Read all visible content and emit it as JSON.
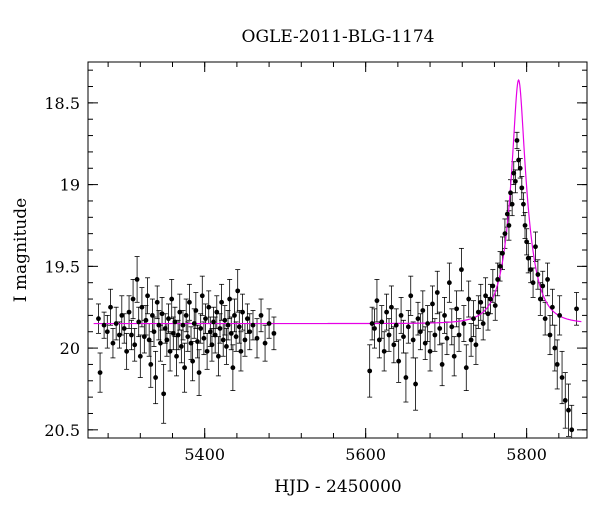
{
  "chart_data": {
    "type": "scatter",
    "title": "OGLE-2011-BLG-1174",
    "xlabel": "HJD - 2450000",
    "ylabel": "I magnitude",
    "xlim": [
      5255,
      5875
    ],
    "ylim": [
      20.55,
      18.25
    ],
    "y_inverted": true,
    "xticks": [
      5400,
      5600,
      5800
    ],
    "yticks": [
      18.5,
      19,
      19.5,
      20,
      20.5
    ],
    "grid": false,
    "colors": {
      "points": "#000000",
      "model": "#e600e6"
    },
    "series": [
      {
        "kind": "points_with_errorbars",
        "points": [
          [
            5268,
            19.82,
            0.09
          ],
          [
            5270,
            20.15,
            0.12
          ],
          [
            5275,
            19.86,
            0.08
          ],
          [
            5279,
            19.9,
            0.1
          ],
          [
            5283,
            19.75,
            0.11
          ],
          [
            5286,
            19.97,
            0.09
          ],
          [
            5290,
            19.85,
            0.1
          ],
          [
            5294,
            19.92,
            0.08
          ],
          [
            5297,
            19.8,
            0.12
          ],
          [
            5300,
            19.88,
            0.09
          ],
          [
            5303,
            20.02,
            0.11
          ],
          [
            5306,
            19.78,
            0.1
          ],
          [
            5309,
            19.92,
            0.09
          ],
          [
            5311,
            19.7,
            0.12
          ],
          [
            5313,
            19.98,
            0.1
          ],
          [
            5316,
            19.58,
            0.14
          ],
          [
            5318,
            19.84,
            0.09
          ],
          [
            5320,
            20.05,
            0.13
          ],
          [
            5322,
            19.75,
            0.12
          ],
          [
            5325,
            19.93,
            0.1
          ],
          [
            5327,
            19.83,
            0.09
          ],
          [
            5329,
            19.68,
            0.11
          ],
          [
            5331,
            19.95,
            0.1
          ],
          [
            5333,
            20.1,
            0.14
          ],
          [
            5335,
            19.8,
            0.1
          ],
          [
            5337,
            19.9,
            0.09
          ],
          [
            5339,
            20.18,
            0.16
          ],
          [
            5341,
            19.72,
            0.1
          ],
          [
            5343,
            19.86,
            0.09
          ],
          [
            5345,
            19.97,
            0.11
          ],
          [
            5347,
            19.79,
            0.1
          ],
          [
            5349,
            20.28,
            0.18
          ],
          [
            5351,
            19.88,
            0.09
          ],
          [
            5353,
            19.95,
            0.1
          ],
          [
            5355,
            19.82,
            0.09
          ],
          [
            5357,
            20.02,
            0.12
          ],
          [
            5359,
            19.7,
            0.12
          ],
          [
            5361,
            19.91,
            0.1
          ],
          [
            5363,
            19.84,
            0.09
          ],
          [
            5365,
            20.05,
            0.12
          ],
          [
            5367,
            19.92,
            0.09
          ],
          [
            5369,
            19.78,
            0.11
          ],
          [
            5371,
            19.99,
            0.1
          ],
          [
            5373,
            19.86,
            0.09
          ],
          [
            5375,
            20.12,
            0.15
          ],
          [
            5377,
            19.8,
            0.1
          ],
          [
            5379,
            19.93,
            0.09
          ],
          [
            5381,
            19.72,
            0.11
          ],
          [
            5383,
            19.97,
            0.1
          ],
          [
            5385,
            20.08,
            0.12
          ],
          [
            5387,
            19.85,
            0.09
          ],
          [
            5389,
            19.77,
            0.11
          ],
          [
            5391,
            19.96,
            0.1
          ],
          [
            5393,
            20.15,
            0.14
          ],
          [
            5395,
            19.88,
            0.09
          ],
          [
            5397,
            19.68,
            0.12
          ],
          [
            5399,
            19.94,
            0.1
          ],
          [
            5401,
            19.82,
            0.09
          ],
          [
            5403,
            20.02,
            0.11
          ],
          [
            5405,
            19.75,
            0.1
          ],
          [
            5407,
            19.9,
            0.09
          ],
          [
            5409,
            19.98,
            0.1
          ],
          [
            5411,
            19.84,
            0.09
          ],
          [
            5413,
            19.92,
            0.11
          ],
          [
            5415,
            19.78,
            0.1
          ],
          [
            5417,
            20.05,
            0.12
          ],
          [
            5419,
            19.88,
            0.09
          ],
          [
            5421,
            19.72,
            0.11
          ],
          [
            5423,
            19.95,
            0.1
          ],
          [
            5425,
            19.83,
            0.09
          ],
          [
            5427,
            19.99,
            0.11
          ],
          [
            5429,
            19.86,
            0.09
          ],
          [
            5431,
            19.7,
            0.12
          ],
          [
            5433,
            19.91,
            0.1
          ],
          [
            5435,
            20.12,
            0.14
          ],
          [
            5437,
            19.8,
            0.1
          ],
          [
            5439,
            19.93,
            0.09
          ],
          [
            5441,
            19.65,
            0.13
          ],
          [
            5443,
            19.87,
            0.1
          ],
          [
            5445,
            20.02,
            0.12
          ],
          [
            5447,
            19.78,
            0.11
          ],
          [
            5450,
            19.95,
            0.1
          ],
          [
            5453,
            19.82,
            0.09
          ],
          [
            5456,
            19.9,
            0.11
          ],
          [
            5460,
            19.86,
            0.09
          ],
          [
            5465,
            19.94,
            0.12
          ],
          [
            5470,
            19.8,
            0.1
          ],
          [
            5475,
            19.97,
            0.11
          ],
          [
            5480,
            19.85,
            0.09
          ],
          [
            5486,
            19.91,
            0.1
          ],
          [
            5605,
            20.14,
            0.16
          ],
          [
            5608,
            19.85,
            0.1
          ],
          [
            5611,
            19.88,
            0.12
          ],
          [
            5614,
            19.71,
            0.13
          ],
          [
            5617,
            19.95,
            0.11
          ],
          [
            5620,
            19.84,
            0.1
          ],
          [
            5623,
            20.02,
            0.12
          ],
          [
            5626,
            19.78,
            0.11
          ],
          [
            5629,
            19.92,
            0.1
          ],
          [
            5632,
            19.75,
            0.13
          ],
          [
            5635,
            19.98,
            0.11
          ],
          [
            5638,
            19.86,
            0.1
          ],
          [
            5641,
            20.08,
            0.13
          ],
          [
            5644,
            19.8,
            0.11
          ],
          [
            5647,
            19.93,
            0.1
          ],
          [
            5650,
            20.18,
            0.15
          ],
          [
            5653,
            19.87,
            0.1
          ],
          [
            5656,
            19.68,
            0.12
          ],
          [
            5659,
            19.95,
            0.11
          ],
          [
            5662,
            20.22,
            0.16
          ],
          [
            5665,
            19.82,
            0.1
          ],
          [
            5668,
            19.9,
            0.11
          ],
          [
            5671,
            19.77,
            0.12
          ],
          [
            5674,
            19.97,
            0.1
          ],
          [
            5677,
            19.85,
            0.11
          ],
          [
            5680,
            20.02,
            0.12
          ],
          [
            5683,
            19.73,
            0.11
          ],
          [
            5686,
            19.92,
            0.1
          ],
          [
            5689,
            19.66,
            0.13
          ],
          [
            5692,
            19.88,
            0.1
          ],
          [
            5695,
            20.1,
            0.13
          ],
          [
            5698,
            19.8,
            0.11
          ],
          [
            5701,
            19.94,
            0.1
          ],
          [
            5704,
            19.6,
            0.12
          ],
          [
            5707,
            19.87,
            0.11
          ],
          [
            5710,
            20.05,
            0.12
          ],
          [
            5713,
            19.76,
            0.11
          ],
          [
            5716,
            19.92,
            0.1
          ],
          [
            5719,
            19.52,
            0.13
          ],
          [
            5722,
            19.85,
            0.11
          ],
          [
            5725,
            20.12,
            0.14
          ],
          [
            5728,
            19.7,
            0.11
          ],
          [
            5731,
            19.95,
            0.1
          ],
          [
            5734,
            19.82,
            0.11
          ],
          [
            5737,
            19.98,
            0.12
          ],
          [
            5740,
            19.78,
            0.1
          ],
          [
            5743,
            19.72,
            0.11
          ],
          [
            5746,
            19.85,
            0.1
          ],
          [
            5749,
            19.68,
            0.11
          ],
          [
            5752,
            19.79,
            0.1
          ],
          [
            5755,
            19.7,
            0.09
          ],
          [
            5758,
            19.62,
            0.1
          ],
          [
            5761,
            19.74,
            0.09
          ],
          [
            5764,
            19.58,
            0.1
          ],
          [
            5767,
            19.5,
            0.09
          ],
          [
            5770,
            19.42,
            0.1
          ],
          [
            5773,
            19.3,
            0.09
          ],
          [
            5776,
            19.18,
            0.08
          ],
          [
            5778,
            19.25,
            0.09
          ],
          [
            5780,
            19.05,
            0.08
          ],
          [
            5782,
            19.12,
            0.07
          ],
          [
            5784,
            18.93,
            0.07
          ],
          [
            5786,
            18.98,
            0.07
          ],
          [
            5788,
            18.73,
            0.05
          ],
          [
            5790,
            18.85,
            0.06
          ],
          [
            5792,
            18.9,
            0.06
          ],
          [
            5794,
            19.02,
            0.07
          ],
          [
            5796,
            19.12,
            0.07
          ],
          [
            5798,
            19.25,
            0.08
          ],
          [
            5800,
            19.35,
            0.08
          ],
          [
            5802,
            19.45,
            0.09
          ],
          [
            5805,
            19.52,
            0.08
          ],
          [
            5808,
            19.6,
            0.09
          ],
          [
            5811,
            19.38,
            0.09
          ],
          [
            5814,
            19.55,
            0.09
          ],
          [
            5817,
            19.7,
            0.1
          ],
          [
            5820,
            19.62,
            0.09
          ],
          [
            5823,
            19.82,
            0.1
          ],
          [
            5826,
            19.58,
            0.1
          ],
          [
            5829,
            19.92,
            0.12
          ],
          [
            5832,
            19.75,
            0.11
          ],
          [
            5835,
            20.0,
            0.14
          ],
          [
            5838,
            20.1,
            0.15
          ],
          [
            5841,
            19.8,
            0.12
          ],
          [
            5844,
            20.18,
            0.16
          ],
          [
            5848,
            20.32,
            0.17
          ],
          [
            5852,
            20.38,
            0.16
          ],
          [
            5856,
            20.5,
            0.15
          ],
          [
            5862,
            19.76,
            0.1
          ]
        ]
      },
      {
        "kind": "model_curve",
        "baseline": 19.85,
        "t0": 5790,
        "u0": 0.26,
        "tE": 23,
        "x_range": [
          5262,
          5868
        ]
      }
    ]
  }
}
